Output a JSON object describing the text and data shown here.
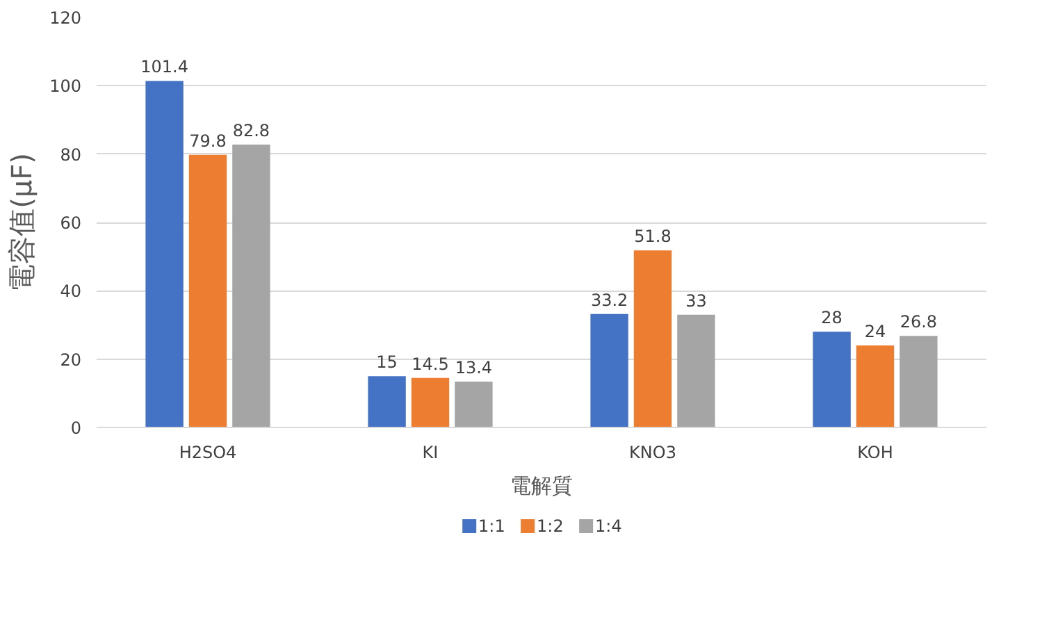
{
  "chart_data": {
    "type": "bar",
    "xlabel": "電解質",
    "ylabel": "電容值(μF)",
    "categories": [
      "H2SO4",
      "KI",
      "KNO3",
      "KOH"
    ],
    "series": [
      {
        "name": "1:1",
        "color": "#4472c4",
        "values": [
          101.4,
          15,
          33.2,
          28
        ]
      },
      {
        "name": "1:2",
        "color": "#ed7d31",
        "values": [
          79.8,
          14.5,
          51.8,
          24
        ]
      },
      {
        "name": "1:4",
        "color": "#a5a5a5",
        "values": [
          82.8,
          13.4,
          33,
          26.8
        ]
      }
    ],
    "ylim": [
      0,
      120
    ],
    "yticks": [
      0,
      20,
      40,
      60,
      80,
      100,
      120
    ],
    "grid": "y",
    "legend": "bottom",
    "data_labels": true
  }
}
